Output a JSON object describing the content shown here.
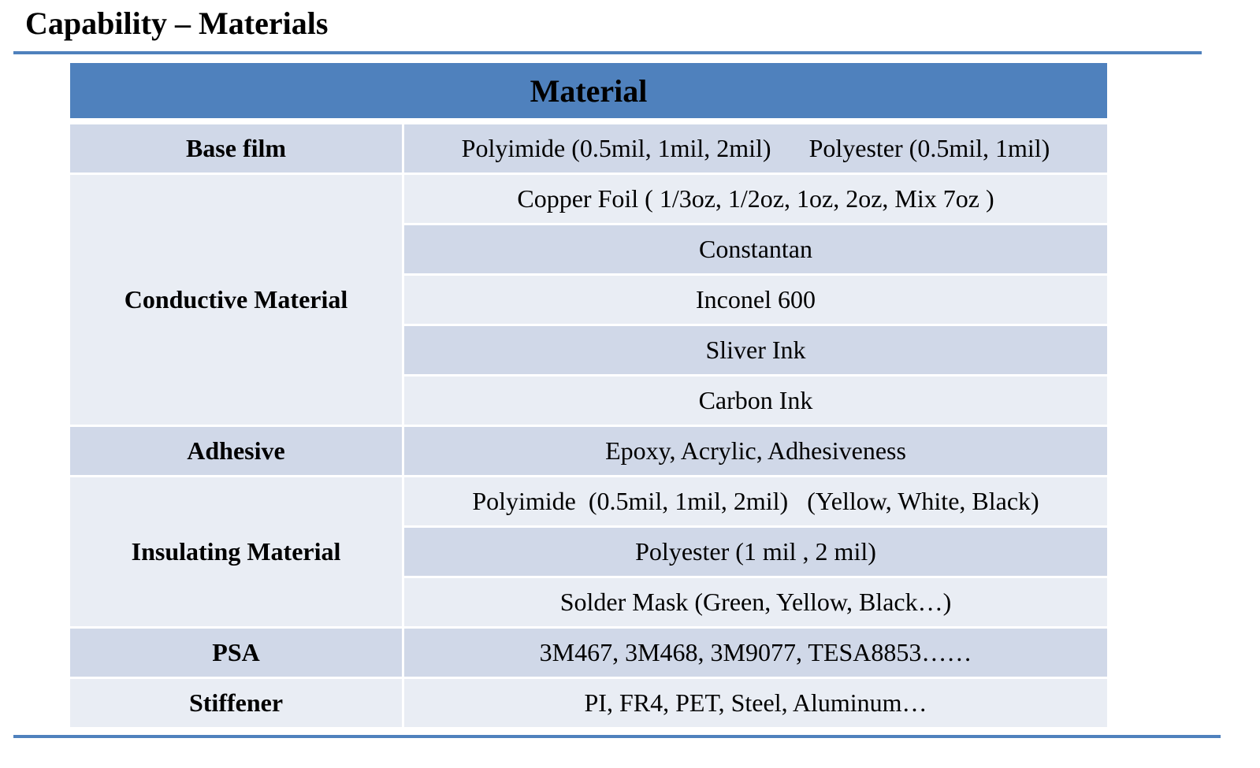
{
  "header": {
    "title": "Capability – Materials"
  },
  "table": {
    "title": "Material",
    "groups": [
      {
        "label": "Base film",
        "items": [
          "Polyimide (0.5mil, 1mil, 2mil)      Polyester (0.5mil, 1mil)"
        ]
      },
      {
        "label": "Conductive Material",
        "items": [
          "Copper Foil ( 1/3oz, 1/2oz, 1oz, 2oz, Mix 7oz )",
          "Constantan",
          "Inconel 600",
          "Sliver Ink",
          "Carbon Ink"
        ]
      },
      {
        "label": "Adhesive",
        "items": [
          "Epoxy, Acrylic, Adhesiveness"
        ]
      },
      {
        "label": "Insulating Material",
        "items": [
          "Polyimide  (0.5mil, 1mil, 2mil)   (Yellow, White, Black)",
          "Polyester (1 mil , 2 mil)",
          "Solder Mask (Green, Yellow, Black…)"
        ]
      },
      {
        "label": "PSA",
        "items": [
          "3M467, 3M468, 3M9077, TESA8853……"
        ]
      },
      {
        "label": "Stiffener",
        "items": [
          "PI, FR4, PET, Steel, Aluminum…"
        ]
      }
    ]
  }
}
